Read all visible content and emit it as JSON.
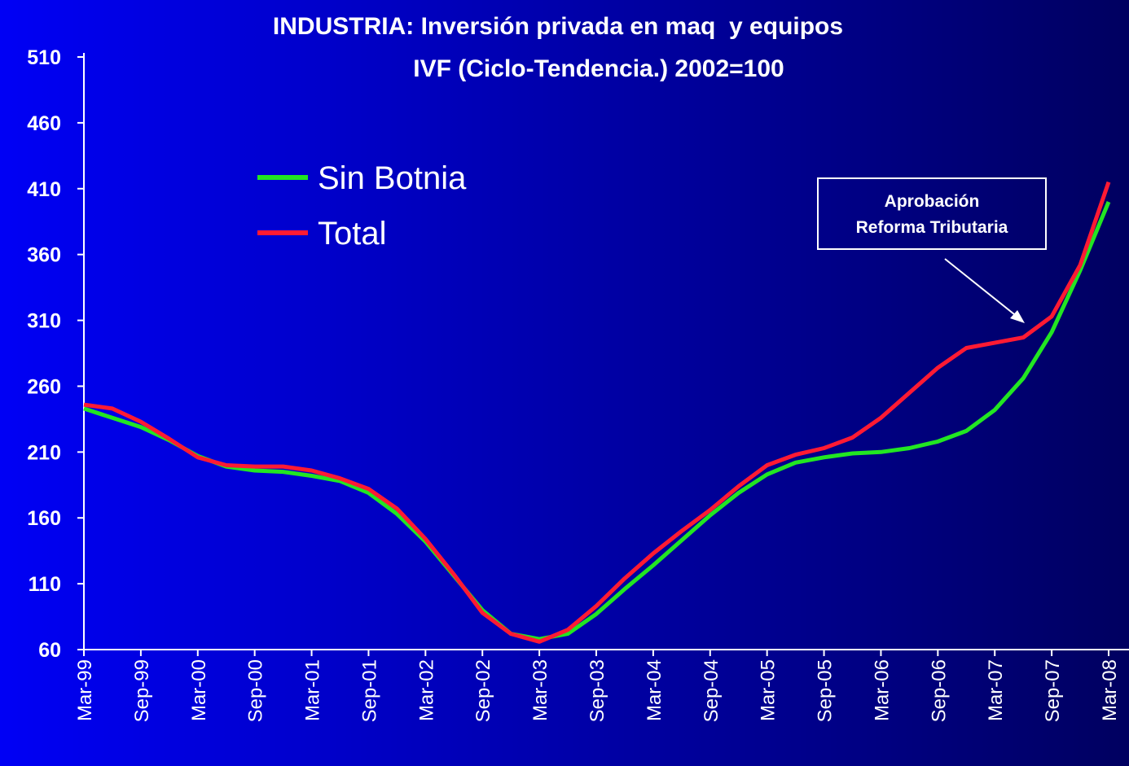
{
  "chart_data": {
    "type": "line",
    "title": "INDUSTRIA: Inversión privada en maq  y equipos",
    "subtitle": "IVF (Ciclo-Tendencia.) 2002=100",
    "categories": [
      "Mar-99",
      null,
      "Sep-99",
      null,
      "Mar-00",
      null,
      "Sep-00",
      null,
      "Mar-01",
      null,
      "Sep-01",
      null,
      "Mar-02",
      null,
      "Sep-02",
      null,
      "Mar-03",
      null,
      "Sep-03",
      null,
      "Mar-04",
      null,
      "Sep-04",
      null,
      "Mar-05",
      null,
      "Sep-05",
      null,
      "Mar-06",
      null,
      "Sep-06",
      null,
      "Mar-07",
      null,
      "Sep-07",
      null,
      "Mar-08"
    ],
    "series": [
      {
        "name": "Sin Botnia",
        "color": "#22e622",
        "values": [
          243,
          236,
          229,
          219,
          207,
          199,
          196,
          195,
          192,
          188,
          179,
          163,
          142,
          116,
          90,
          72,
          68,
          72,
          87,
          106,
          124,
          143,
          162,
          179,
          193,
          202,
          206,
          209,
          210,
          213,
          218,
          226,
          242,
          266,
          301,
          348,
          400
        ]
      },
      {
        "name": "Total",
        "color": "#ff1a33",
        "values": [
          246,
          243,
          233,
          220,
          206,
          200,
          199,
          199,
          196,
          190,
          182,
          167,
          144,
          117,
          88,
          72,
          66,
          75,
          93,
          114,
          133,
          150,
          166,
          184,
          200,
          208,
          213,
          221,
          236,
          255,
          274,
          289,
          293,
          297,
          313,
          352,
          415
        ]
      }
    ],
    "ylim": [
      60,
      510
    ],
    "yticks": [
      60,
      110,
      160,
      210,
      260,
      310,
      360,
      410,
      460,
      510
    ],
    "legend": "upper left",
    "annotation": [
      "Aprobación",
      "Reforma Tributaria"
    ]
  }
}
